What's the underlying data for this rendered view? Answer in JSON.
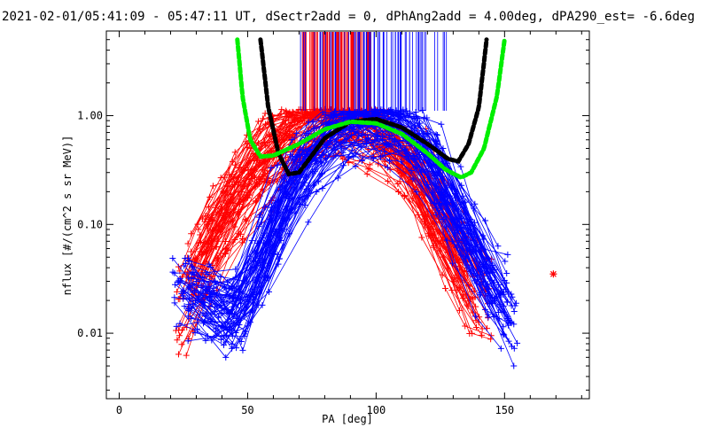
{
  "chart_data": {
    "type": "scatter",
    "title": "2021-02-01/05:41:09 - 05:47:11 UT, dSectr2add = 0, dPhAng2add = 4.00deg, dPA290_est=  -6.6deg",
    "xlabel": "PA [deg]",
    "ylabel": "nflux [#/(cm^2 s sr MeV)]",
    "xlim": [
      -5,
      183
    ],
    "ylim": [
      0.0025,
      6.0
    ],
    "yscale": "log",
    "x_ticks": [
      0,
      50,
      100,
      150
    ],
    "y_ticks": [
      0.01,
      0.1,
      1.0
    ],
    "x_tick_labels": [
      "0",
      "50",
      "100",
      "150"
    ],
    "y_tick_labels": [
      "0.01",
      "0.10",
      "1.00"
    ],
    "colors": {
      "red": "#ff0000",
      "blue": "#0000ff",
      "black": "#000000",
      "green": "#00ee00"
    },
    "red_profile_peak_pa": 88,
    "blue_profile_peak_pa": 100,
    "red_ticks_pa_range": [
      71,
      98
    ],
    "blue_ticks_pa_range": [
      70,
      130
    ],
    "red_outlier": {
      "x": 169,
      "y": 0.035,
      "marker": "star"
    },
    "series": [
      {
        "color": "red",
        "points": [
          [
            22,
            0.012
          ],
          [
            30,
            0.04
          ],
          [
            40,
            0.1
          ],
          [
            50,
            0.25
          ],
          [
            60,
            0.5
          ],
          [
            70,
            0.75
          ],
          [
            80,
            0.9
          ],
          [
            88,
            0.95
          ],
          [
            95,
            0.9
          ],
          [
            105,
            0.6
          ],
          [
            115,
            0.3
          ],
          [
            125,
            0.1
          ],
          [
            135,
            0.035
          ],
          [
            145,
            0.012
          ]
        ]
      },
      {
        "color": "blue",
        "points": [
          [
            22,
            0.03
          ],
          [
            35,
            0.02
          ],
          [
            45,
            0.012
          ],
          [
            52,
            0.03
          ],
          [
            60,
            0.1
          ],
          [
            70,
            0.3
          ],
          [
            80,
            0.6
          ],
          [
            90,
            0.85
          ],
          [
            100,
            0.95
          ],
          [
            110,
            0.8
          ],
          [
            120,
            0.45
          ],
          [
            130,
            0.15
          ],
          [
            140,
            0.05
          ],
          [
            150,
            0.02
          ],
          [
            155,
            0.01
          ]
        ]
      },
      {
        "color": "black",
        "style": "dashed",
        "points": [
          [
            55,
            5.0
          ],
          [
            58,
            1.2
          ],
          [
            62,
            0.45
          ],
          [
            66,
            0.29
          ],
          [
            70,
            0.3
          ],
          [
            80,
            0.62
          ],
          [
            90,
            0.88
          ],
          [
            100,
            0.93
          ],
          [
            110,
            0.78
          ],
          [
            120,
            0.55
          ],
          [
            128,
            0.4
          ],
          [
            132,
            0.38
          ],
          [
            136,
            0.55
          ],
          [
            140,
            1.2
          ],
          [
            143,
            5.0
          ]
        ]
      },
      {
        "color": "green",
        "style": "dashed",
        "points": [
          [
            46,
            5.0
          ],
          [
            48,
            1.5
          ],
          [
            51,
            0.6
          ],
          [
            55,
            0.42
          ],
          [
            60,
            0.43
          ],
          [
            70,
            0.55
          ],
          [
            80,
            0.75
          ],
          [
            90,
            0.88
          ],
          [
            100,
            0.85
          ],
          [
            110,
            0.68
          ],
          [
            120,
            0.45
          ],
          [
            127,
            0.32
          ],
          [
            133,
            0.27
          ],
          [
            137,
            0.3
          ],
          [
            142,
            0.5
          ],
          [
            147,
            1.5
          ],
          [
            150,
            5.0
          ]
        ]
      }
    ]
  }
}
